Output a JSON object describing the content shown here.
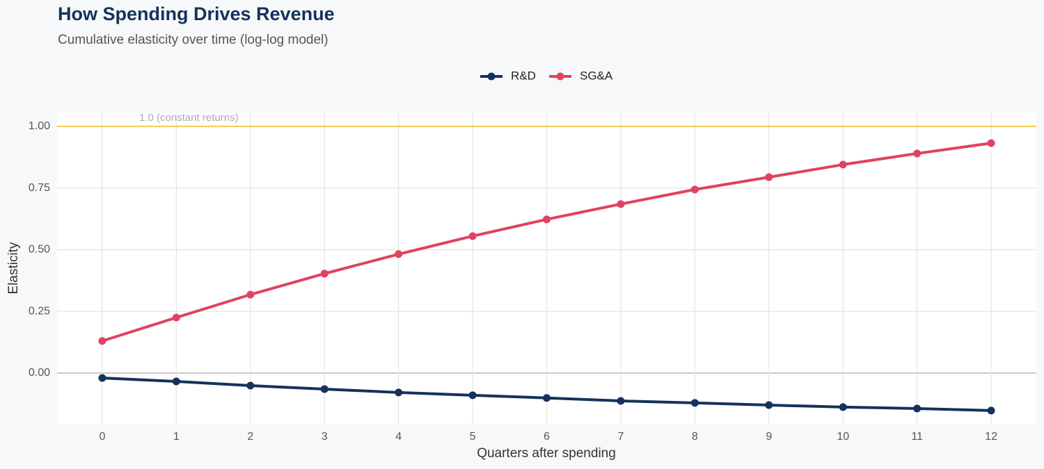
{
  "chart_data": {
    "type": "line",
    "title": "How Spending Drives Revenue",
    "subtitle": "Cumulative elasticity over time (log-log model)",
    "x_label": "Quarters after spending",
    "y_label": "Elasticity",
    "x": [
      0,
      1,
      2,
      3,
      4,
      5,
      6,
      7,
      8,
      9,
      10,
      11,
      12
    ],
    "series": [
      {
        "name": "R&D",
        "color": "#14325c",
        "values": [
          -0.02,
          -0.034,
          -0.051,
          -0.065,
          -0.079,
          -0.09,
          -0.101,
          -0.113,
          -0.121,
          -0.13,
          -0.138,
          -0.144,
          -0.152
        ]
      },
      {
        "name": "SG&A",
        "color": "#e0425f",
        "values": [
          0.13,
          0.225,
          0.318,
          0.403,
          0.482,
          0.555,
          0.623,
          0.685,
          0.744,
          0.794,
          0.845,
          0.89,
          0.932
        ]
      }
    ],
    "xlim": [
      -0.61,
      12.61
    ],
    "ylim": [
      -0.206,
      1.056
    ],
    "xticks": [
      0,
      1,
      2,
      3,
      4,
      5,
      6,
      7,
      8,
      9,
      10,
      11,
      12
    ],
    "yticks": [
      {
        "value": 0,
        "label": "0.00"
      },
      {
        "value": 0.25,
        "label": "0.25"
      },
      {
        "value": 0.5,
        "label": "0.50"
      },
      {
        "value": 0.75,
        "label": "0.75"
      },
      {
        "value": 1,
        "label": "1.00"
      }
    ],
    "reference_line": {
      "value": 1,
      "label": "1.0 (constant returns)",
      "color": "#f2c94c"
    },
    "grid": true,
    "legend": "top"
  }
}
